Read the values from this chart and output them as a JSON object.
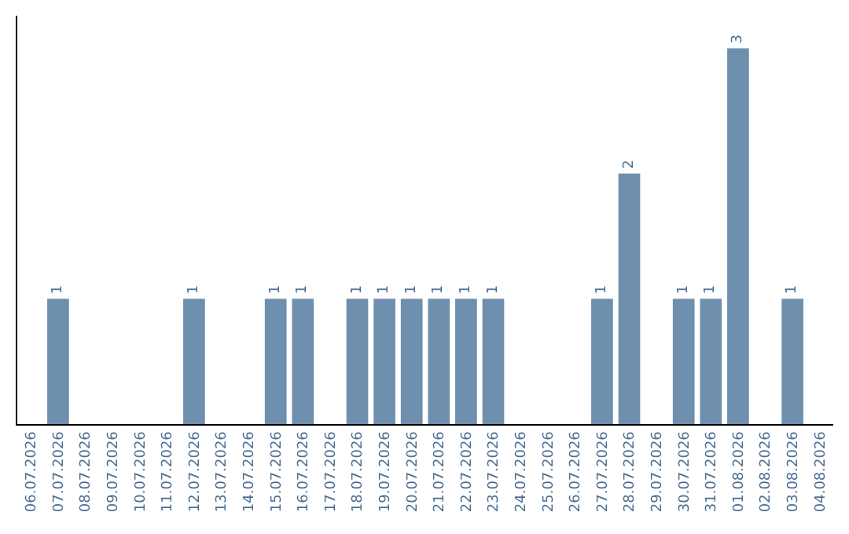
{
  "chart_data": {
    "type": "bar",
    "categories": [
      "06.07.2026",
      "07.07.2026",
      "08.07.2026",
      "09.07.2026",
      "10.07.2026",
      "11.07.2026",
      "12.07.2026",
      "13.07.2026",
      "14.07.2026",
      "15.07.2026",
      "16.07.2026",
      "17.07.2026",
      "18.07.2026",
      "19.07.2026",
      "20.07.2026",
      "21.07.2026",
      "22.07.2026",
      "23.07.2026",
      "24.07.2026",
      "25.07.2026",
      "26.07.2026",
      "27.07.2026",
      "28.07.2026",
      "29.07.2026",
      "30.07.2026",
      "31.07.2026",
      "01.08.2026",
      "02.08.2026",
      "03.08.2026",
      "04.08.2026"
    ],
    "values": [
      0,
      1,
      0,
      0,
      0,
      0,
      1,
      0,
      0,
      1,
      1,
      0,
      1,
      1,
      1,
      1,
      1,
      1,
      0,
      0,
      0,
      1,
      2,
      0,
      1,
      1,
      3,
      0,
      1,
      0
    ],
    "value_labels": [
      null,
      "1",
      null,
      null,
      null,
      null,
      "1",
      null,
      null,
      "1",
      "1",
      null,
      "1",
      "1",
      "1",
      "1",
      "1",
      "1",
      null,
      null,
      null,
      "1",
      "2",
      null,
      "1",
      "1",
      "3",
      null,
      "1",
      null
    ],
    "color": "#6e8fae",
    "grid": false,
    "tick_labels": "x"
  }
}
